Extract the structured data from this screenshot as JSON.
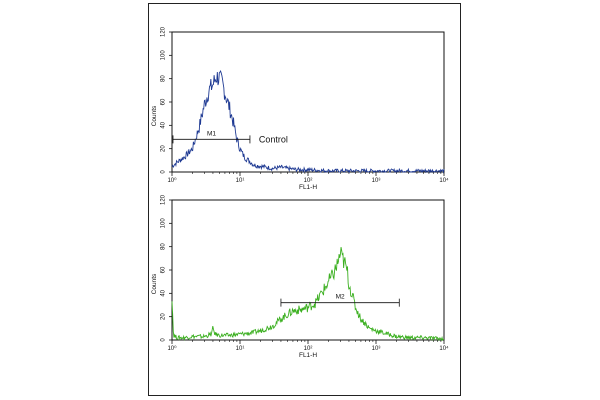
{
  "chart_data": [
    {
      "type": "line",
      "xlabel": "FL1-H",
      "ylabel": "Counts",
      "x_scale": "log",
      "xlim": [
        1,
        10000
      ],
      "ylim": [
        0,
        120
      ],
      "x_ticks": [
        "10⁰",
        "10¹",
        "10²",
        "10³",
        "10⁴"
      ],
      "y_ticks": [
        "0",
        "20",
        "40",
        "60",
        "80",
        "100",
        "120"
      ],
      "annotation": "Control",
      "gate": {
        "label": "M1",
        "x_start": 1,
        "x_end": 14,
        "y": 28
      },
      "series": [
        {
          "color": "#1f3a93",
          "x": [
            1,
            1.3,
            1.6,
            2,
            2.5,
            3,
            3.5,
            4,
            4.5,
            5,
            5.5,
            6,
            7,
            8,
            9,
            10,
            11,
            12,
            14,
            16,
            20,
            25,
            30,
            40,
            50,
            70,
            100,
            200,
            500,
            1000,
            3000,
            10000
          ],
          "y": [
            5,
            10,
            14,
            20,
            38,
            58,
            70,
            75,
            82,
            80,
            76,
            68,
            55,
            42,
            28,
            20,
            15,
            12,
            9,
            6,
            5,
            4,
            3,
            4,
            3,
            2,
            2,
            1,
            1,
            1,
            1,
            1
          ]
        }
      ]
    },
    {
      "type": "line",
      "xlabel": "FL1-H",
      "ylabel": "Counts",
      "x_scale": "log",
      "xlim": [
        1,
        10000
      ],
      "ylim": [
        0,
        120
      ],
      "x_ticks": [
        "10⁰",
        "10¹",
        "10²",
        "10³",
        "10⁴"
      ],
      "y_ticks": [
        "0",
        "20",
        "40",
        "60",
        "80",
        "100",
        "120"
      ],
      "gate": {
        "label": "M2",
        "x_start": 40,
        "x_end": 2200,
        "y": 32
      },
      "series": [
        {
          "color": "#3cb021",
          "x": [
            1,
            1.05,
            1.2,
            1.5,
            2,
            3,
            3.8,
            4,
            4.3,
            5,
            7,
            10,
            15,
            20,
            30,
            40,
            50,
            60,
            80,
            100,
            130,
            150,
            180,
            200,
            230,
            260,
            280,
            300,
            320,
            350,
            380,
            400,
            450,
            500,
            600,
            700,
            800,
            1000,
            1500,
            2000,
            3000,
            5000,
            10000
          ],
          "y": [
            38,
            4,
            2,
            2,
            3,
            3,
            5,
            10,
            5,
            4,
            4,
            5,
            6,
            8,
            12,
            18,
            22,
            25,
            26,
            28,
            32,
            38,
            45,
            50,
            55,
            62,
            68,
            74,
            70,
            65,
            58,
            48,
            38,
            28,
            18,
            14,
            10,
            8,
            5,
            3,
            2,
            2,
            1
          ]
        }
      ]
    }
  ]
}
